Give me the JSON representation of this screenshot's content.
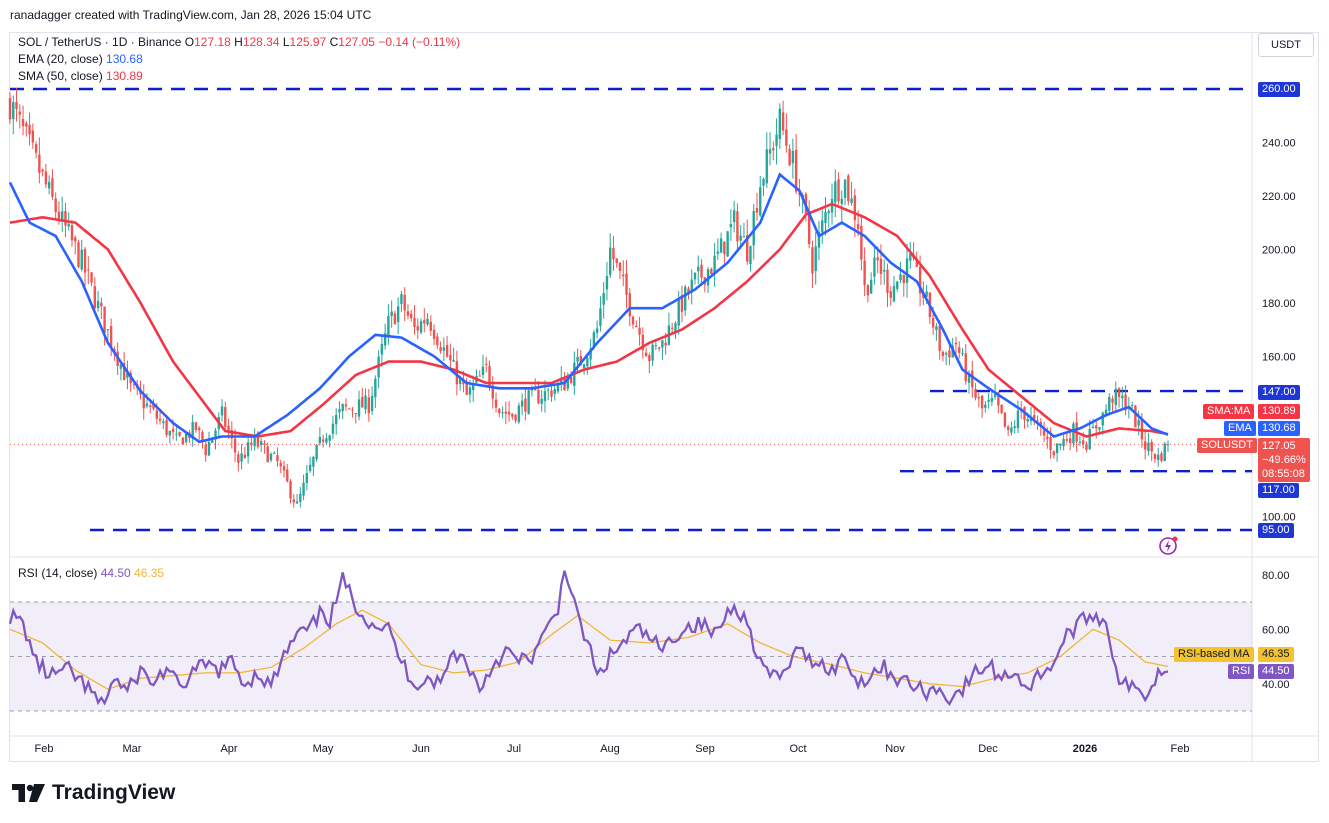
{
  "header": {
    "attribution": "ranadagger created with TradingView.com, Jan 28, 2026 15:04 UTC"
  },
  "legend": {
    "symbol": "SOL / TetherUS · 1D · Binance",
    "o_label": "O",
    "o": "127.18",
    "h_label": "H",
    "h": "128.34",
    "l_label": "L",
    "l": "125.97",
    "c_label": "C",
    "c": "127.05",
    "change": "−0.14 (−0.11%)",
    "ema_label": "EMA (20, close)",
    "ema_value": "130.68",
    "sma_label": "SMA (50, close)",
    "sma_value": "130.89",
    "rsi_label": "RSI (14, close)",
    "rsi_value": "44.50",
    "rsi_ma_value": "46.35"
  },
  "currency_button": "USDT",
  "badges": {
    "resist_260": "260.00",
    "resist_147": "147.00",
    "sma_tag": "SMA:MA",
    "sma_val": "130.89",
    "ema_tag": "EMA",
    "ema_val": "130.68",
    "sol_tag": "SOLUSDT",
    "sol_val": "127.05",
    "sol_pct": "−49.66%",
    "sol_time": "08:55:08",
    "support_117": "117.00",
    "support_95": "95.00",
    "rsi_ma_tag": "RSI-based MA",
    "rsi_ma_val": "46.35",
    "rsi_tag": "RSI",
    "rsi_val": "44.50"
  },
  "colors": {
    "up": "#26a69a",
    "down": "#ef5350",
    "ema": "#2962ff",
    "sma": "#f23645",
    "rsi": "#7e57c2",
    "rsi_ma": "#f2b636",
    "level": "#0d1fd1"
  },
  "footer": {
    "brand": "TradingView"
  },
  "chart_data": {
    "type": "candlestick",
    "price_axis": {
      "ticks": [
        100,
        120,
        140,
        160,
        180,
        200,
        220,
        240
      ],
      "labels": [
        "100.00",
        "120.00",
        "140.00",
        "160.00",
        "180.00",
        "200.00",
        "220.00",
        "240.00"
      ],
      "range": [
        90,
        272
      ]
    },
    "rsi_axis": {
      "ticks": [
        40,
        60,
        80
      ],
      "labels": [
        "40.00",
        "60.00",
        "80.00"
      ],
      "band": [
        30,
        70
      ]
    },
    "x_labels": [
      "Feb",
      "Mar",
      "Apr",
      "May",
      "Jun",
      "Jul",
      "Aug",
      "Sep",
      "Oct",
      "Nov",
      "Dec",
      "2026",
      "Feb"
    ],
    "horizontal_levels": [
      260,
      147,
      117,
      95
    ],
    "last_close": 127.05,
    "close_anchors": [
      [
        0,
        255
      ],
      [
        6,
        238
      ],
      [
        14,
        215
      ],
      [
        22,
        195
      ],
      [
        29,
        172
      ],
      [
        37,
        148
      ],
      [
        43,
        140
      ],
      [
        51,
        128
      ],
      [
        57,
        133
      ],
      [
        60,
        125
      ],
      [
        65,
        138
      ],
      [
        70,
        121
      ],
      [
        75,
        128
      ],
      [
        82,
        120
      ],
      [
        88,
        104
      ],
      [
        92,
        118
      ],
      [
        96,
        130
      ],
      [
        102,
        140
      ],
      [
        110,
        142
      ],
      [
        116,
        172
      ],
      [
        120,
        180
      ],
      [
        124,
        170
      ],
      [
        128,
        175
      ],
      [
        134,
        160
      ],
      [
        140,
        145
      ],
      [
        146,
        155
      ],
      [
        150,
        140
      ],
      [
        154,
        138
      ],
      [
        159,
        144
      ],
      [
        164,
        146
      ],
      [
        170,
        150
      ],
      [
        176,
        160
      ],
      [
        180,
        170
      ],
      [
        184,
        200
      ],
      [
        188,
        186
      ],
      [
        192,
        172
      ],
      [
        196,
        160
      ],
      [
        200,
        165
      ],
      [
        206,
        180
      ],
      [
        210,
        188
      ],
      [
        216,
        195
      ],
      [
        222,
        210
      ],
      [
        226,
        200
      ],
      [
        230,
        225
      ],
      [
        234,
        240
      ],
      [
        236,
        248
      ],
      [
        240,
        232
      ],
      [
        244,
        210
      ],
      [
        246,
        195
      ],
      [
        252,
        222
      ],
      [
        256,
        225
      ],
      [
        260,
        210
      ],
      [
        262,
        185
      ],
      [
        266,
        195
      ],
      [
        270,
        185
      ],
      [
        276,
        195
      ],
      [
        281,
        180
      ],
      [
        286,
        160
      ],
      [
        290,
        165
      ],
      [
        294,
        150
      ],
      [
        298,
        140
      ],
      [
        302,
        143
      ],
      [
        306,
        130
      ],
      [
        310,
        140
      ],
      [
        316,
        132
      ],
      [
        320,
        125
      ],
      [
        326,
        132
      ],
      [
        330,
        128
      ],
      [
        335,
        138
      ],
      [
        338,
        145
      ],
      [
        343,
        142
      ],
      [
        348,
        127
      ],
      [
        352,
        122
      ],
      [
        355,
        127
      ]
    ],
    "ema_anchors": [
      [
        0,
        225
      ],
      [
        6,
        210
      ],
      [
        14,
        205
      ],
      [
        22,
        188
      ],
      [
        30,
        165
      ],
      [
        40,
        147
      ],
      [
        50,
        135
      ],
      [
        58,
        128
      ],
      [
        65,
        130
      ],
      [
        75,
        130
      ],
      [
        85,
        138
      ],
      [
        95,
        148
      ],
      [
        104,
        160
      ],
      [
        112,
        168
      ],
      [
        120,
        167
      ],
      [
        130,
        160
      ],
      [
        140,
        150
      ],
      [
        150,
        148
      ],
      [
        160,
        148
      ],
      [
        170,
        150
      ],
      [
        180,
        165
      ],
      [
        190,
        178
      ],
      [
        200,
        178
      ],
      [
        210,
        185
      ],
      [
        220,
        195
      ],
      [
        230,
        210
      ],
      [
        236,
        228
      ],
      [
        242,
        222
      ],
      [
        248,
        205
      ],
      [
        255,
        210
      ],
      [
        262,
        205
      ],
      [
        270,
        195
      ],
      [
        278,
        188
      ],
      [
        286,
        170
      ],
      [
        292,
        155
      ],
      [
        300,
        148
      ],
      [
        310,
        140
      ],
      [
        320,
        130
      ],
      [
        328,
        133
      ],
      [
        336,
        138
      ],
      [
        343,
        141
      ],
      [
        350,
        133
      ],
      [
        355,
        130.68
      ]
    ],
    "sma_anchors": [
      [
        0,
        210
      ],
      [
        10,
        212
      ],
      [
        20,
        210
      ],
      [
        30,
        200
      ],
      [
        40,
        180
      ],
      [
        50,
        158
      ],
      [
        58,
        145
      ],
      [
        66,
        132
      ],
      [
        76,
        130
      ],
      [
        86,
        132
      ],
      [
        96,
        142
      ],
      [
        106,
        153
      ],
      [
        116,
        158
      ],
      [
        126,
        158
      ],
      [
        136,
        155
      ],
      [
        146,
        150
      ],
      [
        156,
        150
      ],
      [
        166,
        150
      ],
      [
        176,
        155
      ],
      [
        186,
        158
      ],
      [
        196,
        165
      ],
      [
        206,
        170
      ],
      [
        216,
        178
      ],
      [
        226,
        188
      ],
      [
        236,
        200
      ],
      [
        244,
        213
      ],
      [
        252,
        217
      ],
      [
        262,
        212
      ],
      [
        272,
        205
      ],
      [
        282,
        190
      ],
      [
        292,
        170
      ],
      [
        300,
        155
      ],
      [
        310,
        145
      ],
      [
        320,
        135
      ],
      [
        330,
        130
      ],
      [
        340,
        133
      ],
      [
        350,
        132
      ],
      [
        355,
        130.89
      ]
    ],
    "rsi_anchors": [
      [
        0,
        65
      ],
      [
        4,
        62
      ],
      [
        8,
        48
      ],
      [
        12,
        43
      ],
      [
        18,
        45
      ],
      [
        24,
        38
      ],
      [
        28,
        32
      ],
      [
        32,
        42
      ],
      [
        36,
        37
      ],
      [
        40,
        45
      ],
      [
        44,
        40
      ],
      [
        48,
        46
      ],
      [
        52,
        38
      ],
      [
        56,
        44
      ],
      [
        60,
        47
      ],
      [
        64,
        45
      ],
      [
        68,
        48
      ],
      [
        72,
        40
      ],
      [
        76,
        44
      ],
      [
        80,
        39
      ],
      [
        84,
        50
      ],
      [
        88,
        58
      ],
      [
        92,
        60
      ],
      [
        96,
        67
      ],
      [
        98,
        63
      ],
      [
        102,
        78
      ],
      [
        106,
        69
      ],
      [
        110,
        63
      ],
      [
        116,
        60
      ],
      [
        120,
        48
      ],
      [
        124,
        40
      ],
      [
        128,
        42
      ],
      [
        132,
        40
      ],
      [
        136,
        52
      ],
      [
        140,
        48
      ],
      [
        144,
        38
      ],
      [
        148,
        47
      ],
      [
        152,
        52
      ],
      [
        156,
        48
      ],
      [
        160,
        50
      ],
      [
        164,
        58
      ],
      [
        168,
        67
      ],
      [
        170,
        84
      ],
      [
        174,
        64
      ],
      [
        178,
        52
      ],
      [
        180,
        42
      ],
      [
        184,
        50
      ],
      [
        188,
        55
      ],
      [
        192,
        60
      ],
      [
        196,
        57
      ],
      [
        200,
        52
      ],
      [
        204,
        58
      ],
      [
        208,
        61
      ],
      [
        212,
        62
      ],
      [
        216,
        58
      ],
      [
        220,
        66
      ],
      [
        222,
        70
      ],
      [
        226,
        62
      ],
      [
        230,
        48
      ],
      [
        234,
        42
      ],
      [
        238,
        44
      ],
      [
        240,
        52
      ],
      [
        244,
        50
      ],
      [
        248,
        48
      ],
      [
        252,
        45
      ],
      [
        256,
        50
      ],
      [
        260,
        40
      ],
      [
        264,
        44
      ],
      [
        268,
        46
      ],
      [
        272,
        42
      ],
      [
        276,
        40
      ],
      [
        280,
        37
      ],
      [
        284,
        38
      ],
      [
        288,
        35
      ],
      [
        292,
        38
      ],
      [
        296,
        44
      ],
      [
        300,
        47
      ],
      [
        304,
        42
      ],
      [
        308,
        45
      ],
      [
        312,
        38
      ],
      [
        316,
        44
      ],
      [
        320,
        48
      ],
      [
        324,
        58
      ],
      [
        328,
        62
      ],
      [
        332,
        66
      ],
      [
        336,
        62
      ],
      [
        340,
        42
      ],
      [
        344,
        38
      ],
      [
        348,
        36
      ],
      [
        352,
        44
      ],
      [
        355,
        44.5
      ]
    ],
    "rsi_ma_anchors": [
      [
        0,
        60
      ],
      [
        10,
        55
      ],
      [
        20,
        45
      ],
      [
        30,
        38
      ],
      [
        40,
        42
      ],
      [
        50,
        43
      ],
      [
        60,
        44
      ],
      [
        70,
        44
      ],
      [
        80,
        46
      ],
      [
        90,
        53
      ],
      [
        100,
        62
      ],
      [
        108,
        67
      ],
      [
        116,
        62
      ],
      [
        126,
        47
      ],
      [
        136,
        44
      ],
      [
        146,
        45
      ],
      [
        156,
        48
      ],
      [
        166,
        58
      ],
      [
        174,
        65
      ],
      [
        184,
        56
      ],
      [
        196,
        55
      ],
      [
        208,
        57
      ],
      [
        220,
        62
      ],
      [
        230,
        55
      ],
      [
        240,
        50
      ],
      [
        252,
        47
      ],
      [
        262,
        44
      ],
      [
        272,
        42
      ],
      [
        282,
        40
      ],
      [
        292,
        39
      ],
      [
        302,
        42
      ],
      [
        312,
        44
      ],
      [
        322,
        50
      ],
      [
        332,
        60
      ],
      [
        340,
        56
      ],
      [
        348,
        48
      ],
      [
        355,
        46.35
      ]
    ]
  }
}
